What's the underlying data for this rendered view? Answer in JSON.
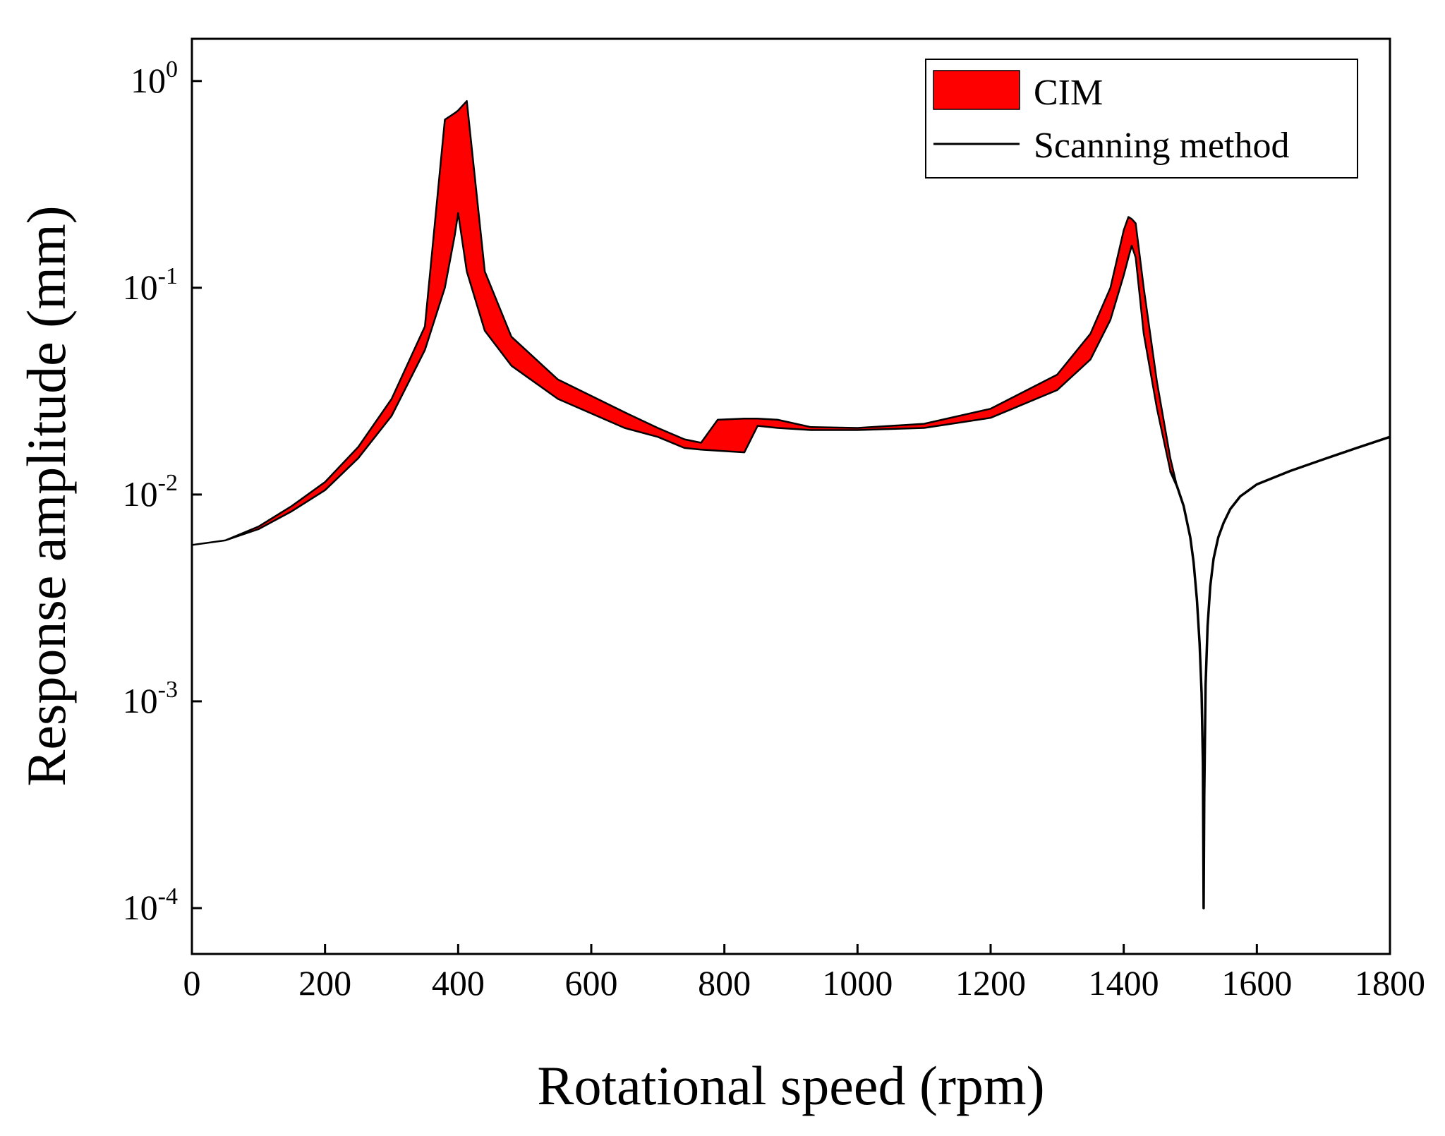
{
  "chart_data": {
    "type": "area",
    "xlabel": "Rotational speed (rpm)",
    "ylabel": "Response amplitude (mm)",
    "xlim": [
      0,
      1800
    ],
    "ylim": [
      6e-05,
      1.6
    ],
    "yscale": "log",
    "x_ticks": [
      {
        "value": 0,
        "label": "0"
      },
      {
        "value": 200,
        "label": "200"
      },
      {
        "value": 400,
        "label": "400"
      },
      {
        "value": 600,
        "label": "600"
      },
      {
        "value": 800,
        "label": "800"
      },
      {
        "value": 1000,
        "label": "1000"
      },
      {
        "value": 1200,
        "label": "1200"
      },
      {
        "value": 1400,
        "label": "1400"
      },
      {
        "value": 1600,
        "label": "1600"
      },
      {
        "value": 1800,
        "label": "1800"
      }
    ],
    "y_ticks": [
      {
        "value": 1,
        "base": "10",
        "exp": "0"
      },
      {
        "value": 0.1,
        "base": "10",
        "exp": "-1"
      },
      {
        "value": 0.01,
        "base": "10",
        "exp": "-2"
      },
      {
        "value": 0.001,
        "base": "10",
        "exp": "-3"
      },
      {
        "value": 0.0001,
        "base": "10",
        "exp": "-4"
      }
    ],
    "legend_position": "top-right",
    "series": [
      {
        "name": "CIM",
        "kind": "band",
        "color": "#ff0000",
        "x": [
          0,
          50,
          100,
          150,
          200,
          250,
          300,
          350,
          380,
          395,
          400,
          413,
          440,
          480,
          550,
          650,
          700,
          740,
          765,
          790,
          830,
          850,
          880,
          930,
          1000,
          1100,
          1200,
          1300,
          1350,
          1380,
          1400,
          1407,
          1412,
          1418,
          1430,
          1450,
          1470,
          1480
        ],
        "lower": [
          0.0057,
          0.006,
          0.0068,
          0.0083,
          0.0105,
          0.015,
          0.024,
          0.05,
          0.1,
          0.18,
          0.23,
          0.12,
          0.062,
          0.042,
          0.029,
          0.021,
          0.019,
          0.0168,
          0.0165,
          0.0163,
          0.016,
          0.0215,
          0.021,
          0.0205,
          0.0205,
          0.021,
          0.0235,
          0.032,
          0.045,
          0.07,
          0.115,
          0.14,
          0.16,
          0.14,
          0.06,
          0.026,
          0.013,
          0.011
        ],
        "upper": [
          0.0057,
          0.006,
          0.007,
          0.0088,
          0.0115,
          0.017,
          0.029,
          0.065,
          0.65,
          0.7,
          0.72,
          0.8,
          0.12,
          0.058,
          0.036,
          0.025,
          0.021,
          0.0185,
          0.0178,
          0.023,
          0.0233,
          0.0233,
          0.023,
          0.0212,
          0.021,
          0.022,
          0.026,
          0.038,
          0.06,
          0.1,
          0.19,
          0.22,
          0.215,
          0.205,
          0.1,
          0.035,
          0.015,
          0.011
        ]
      },
      {
        "name": "Scanning method",
        "kind": "line",
        "color": "#000000",
        "x": [
          1470,
          1480,
          1490,
          1500,
          1505,
          1510,
          1514,
          1517,
          1519,
          1520,
          1521,
          1523,
          1526,
          1530,
          1535,
          1542,
          1550,
          1560,
          1575,
          1600,
          1650,
          1700,
          1750,
          1800
        ],
        "y": [
          0.013,
          0.011,
          0.0088,
          0.0062,
          0.0047,
          0.0031,
          0.0019,
          0.0011,
          0.0005,
          0.0001,
          0.00035,
          0.0012,
          0.0023,
          0.0036,
          0.0049,
          0.0062,
          0.0073,
          0.0085,
          0.0098,
          0.0112,
          0.013,
          0.0148,
          0.0168,
          0.019
        ]
      }
    ]
  }
}
